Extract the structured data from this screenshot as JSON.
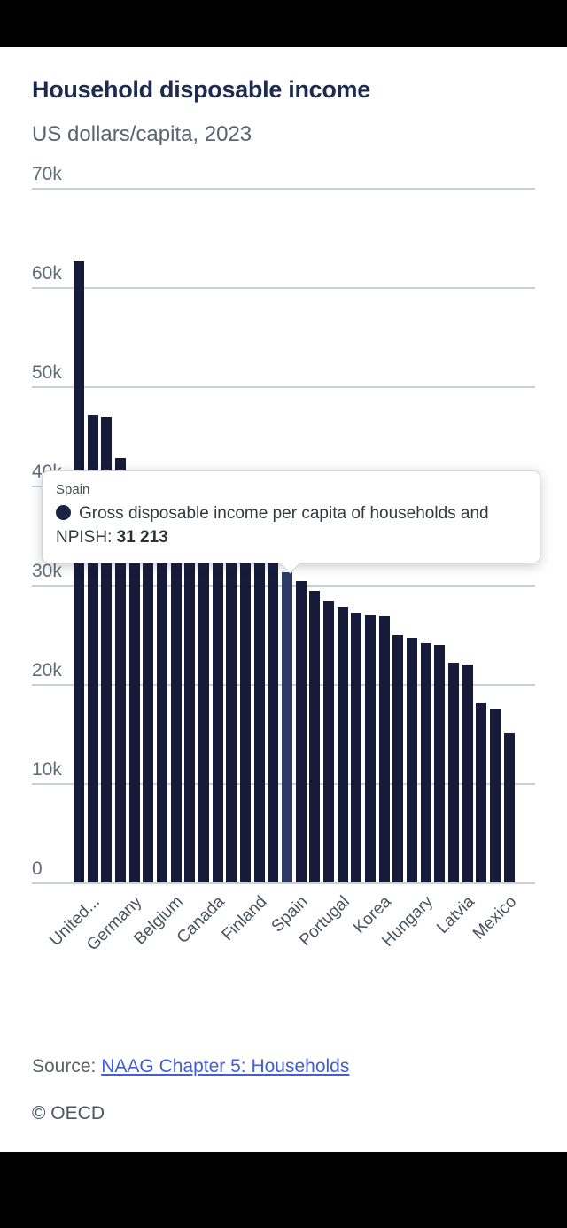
{
  "page": {
    "title": "Household disposable income",
    "subtitle": "US dollars/capita, 2023"
  },
  "tooltip": {
    "country": "Spain",
    "marker_icon": "filled-circle",
    "marker_color": "#1a2340",
    "series_label": "Gross disposable income per capita of households and NPISH:",
    "value": "31 213"
  },
  "footer": {
    "source_prefix": "Source:",
    "source_link": "NAAG Chapter 5: Households",
    "copyright": "© OECD"
  },
  "colors": {
    "bar": "#151b39",
    "bar_highlight": "#2c3a66",
    "grid": "#ccd1d9",
    "link": "#3f5ed8",
    "title": "#1c2b4e"
  },
  "chart_data": {
    "type": "bar",
    "title": "Household disposable income",
    "unit_label": "US dollars/capita, 2023",
    "ylim": [
      0,
      70000
    ],
    "y_tick_labels": [
      "70k",
      "60k",
      "50k",
      "40k",
      "30k",
      "20k",
      "10k",
      "0"
    ],
    "grid": "horizontal",
    "legend": "none",
    "n_bars": 32,
    "values": [
      62600,
      47100,
      46900,
      42800,
      41000,
      40300,
      39700,
      39000,
      38200,
      37500,
      36500,
      35500,
      34500,
      33400,
      32300,
      31213,
      30400,
      29400,
      28400,
      27800,
      27100,
      27000,
      26900,
      24900,
      24600,
      24100,
      23900,
      22100,
      22000,
      18100,
      17500,
      15100
    ],
    "values_are_chart_read_estimates": true,
    "x_tick_labels": [
      {
        "label": "United...",
        "bar": 1
      },
      {
        "label": "Germany",
        "bar": 4
      },
      {
        "label": "Belgium",
        "bar": 7
      },
      {
        "label": "Canada",
        "bar": 10
      },
      {
        "label": "Finland",
        "bar": 13
      },
      {
        "label": "Spain",
        "bar": 16
      },
      {
        "label": "Portugal",
        "bar": 19
      },
      {
        "label": "Korea",
        "bar": 22
      },
      {
        "label": "Hungary",
        "bar": 25
      },
      {
        "label": "Latvia",
        "bar": 28
      },
      {
        "label": "Mexico",
        "bar": 31
      }
    ],
    "highlighted_bar": {
      "index": 16,
      "label": "Spain",
      "value": 31213
    }
  }
}
